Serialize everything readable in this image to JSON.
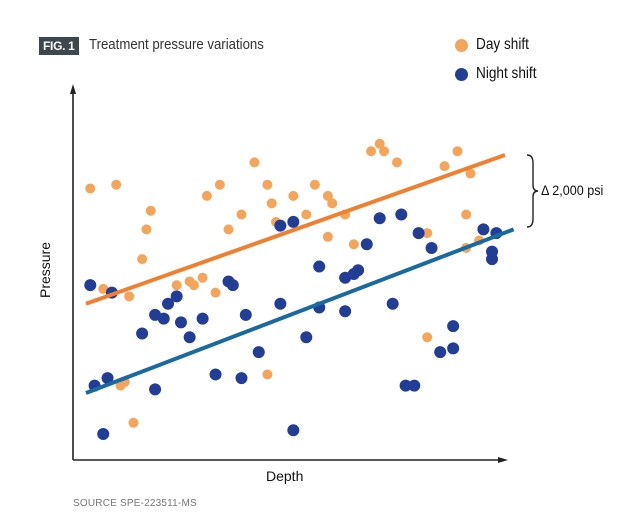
{
  "chart_data": {
    "type": "scatter",
    "figure_label": "FIG. 1",
    "title": "Treatment pressure variations",
    "xlabel": "Depth",
    "ylabel": "Pressure",
    "xlim": [
      0,
      100
    ],
    "ylim": [
      0,
      100
    ],
    "ticks": "none",
    "grid": false,
    "legend_position": "top-right",
    "source": "SOURCE SPE-223511-MS",
    "annotation": "Δ 2,000 psi",
    "series": [
      {
        "name": "Day shift",
        "color": "#f5a55a",
        "points": [
          [
            4,
            73
          ],
          [
            10,
            74
          ],
          [
            18,
            67
          ],
          [
            17,
            62
          ],
          [
            16,
            54
          ],
          [
            7,
            46
          ],
          [
            13,
            44
          ],
          [
            12,
            21
          ],
          [
            14,
            10
          ],
          [
            24,
            47
          ],
          [
            27,
            48
          ],
          [
            28,
            47
          ],
          [
            30,
            49
          ],
          [
            33,
            45
          ],
          [
            31,
            71
          ],
          [
            34,
            74
          ],
          [
            36,
            62
          ],
          [
            39,
            66
          ],
          [
            42,
            80
          ],
          [
            45,
            74
          ],
          [
            46,
            69
          ],
          [
            51,
            71
          ],
          [
            54,
            66
          ],
          [
            56,
            74
          ],
          [
            59,
            71
          ],
          [
            60,
            69
          ],
          [
            59,
            60
          ],
          [
            63,
            66
          ],
          [
            65,
            58
          ],
          [
            68,
            58
          ],
          [
            69,
            83
          ],
          [
            71,
            85
          ],
          [
            72,
            83
          ],
          [
            75,
            80
          ],
          [
            80,
            61
          ],
          [
            82,
            61
          ],
          [
            82,
            33
          ],
          [
            86,
            79
          ],
          [
            89,
            83
          ],
          [
            91,
            66
          ],
          [
            92,
            77
          ],
          [
            94,
            59
          ],
          [
            91,
            57
          ],
          [
            45,
            23
          ],
          [
            11,
            20
          ],
          [
            47,
            64
          ]
        ],
        "trendline": {
          "color": "#f08030",
          "from": [
            3,
            42
          ],
          "to": [
            100,
            82
          ]
        }
      },
      {
        "name": "Night shift",
        "color": "#213d96",
        "points": [
          [
            4,
            47
          ],
          [
            9,
            45
          ],
          [
            16,
            34
          ],
          [
            19,
            39
          ],
          [
            21,
            38
          ],
          [
            22,
            42
          ],
          [
            24,
            44
          ],
          [
            25,
            37
          ],
          [
            27,
            33
          ],
          [
            30,
            38
          ],
          [
            36,
            48
          ],
          [
            37,
            47
          ],
          [
            40,
            39
          ],
          [
            43,
            29
          ],
          [
            33,
            23
          ],
          [
            39,
            22
          ],
          [
            19,
            19
          ],
          [
            5,
            20
          ],
          [
            8,
            22
          ],
          [
            7,
            7
          ],
          [
            48,
            42
          ],
          [
            48,
            63
          ],
          [
            51,
            64
          ],
          [
            57,
            52
          ],
          [
            57,
            41
          ],
          [
            54,
            33
          ],
          [
            63,
            49
          ],
          [
            65,
            50
          ],
          [
            66,
            51
          ],
          [
            63,
            40
          ],
          [
            68,
            58
          ],
          [
            71,
            65
          ],
          [
            76,
            66
          ],
          [
            74,
            42
          ],
          [
            80,
            61
          ],
          [
            83,
            57
          ],
          [
            77,
            20
          ],
          [
            79,
            20
          ],
          [
            85,
            29
          ],
          [
            88,
            36
          ],
          [
            88,
            30
          ],
          [
            95,
            62
          ],
          [
            97,
            56
          ],
          [
            97,
            54
          ],
          [
            98,
            61
          ],
          [
            51,
            8
          ]
        ],
        "trendline": {
          "color": "#1a6aa0",
          "from": [
            3,
            18
          ],
          "to": [
            102,
            62
          ]
        }
      }
    ]
  }
}
